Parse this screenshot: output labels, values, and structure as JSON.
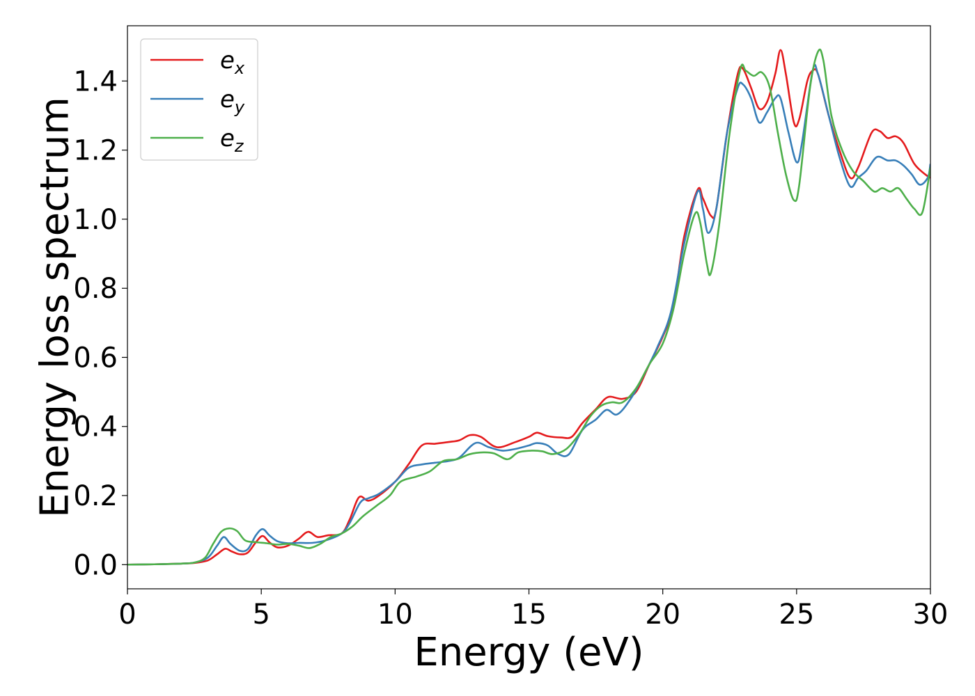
{
  "chart_data": {
    "type": "line",
    "title": "",
    "xlabel": "Energy (eV)",
    "ylabel": "Energy loss spectrum",
    "xlim": [
      0,
      30
    ],
    "ylim": [
      -0.07,
      1.56
    ],
    "xticks": [
      0,
      5,
      10,
      15,
      20,
      25,
      30
    ],
    "xtick_labels": [
      "0",
      "5",
      "10",
      "15",
      "20",
      "25",
      "30"
    ],
    "yticks": [
      0.0,
      0.2,
      0.4,
      0.6,
      0.8,
      1.0,
      1.2,
      1.4
    ],
    "ytick_labels": [
      "0.0",
      "0.2",
      "0.4",
      "0.6",
      "0.8",
      "1.0",
      "1.2",
      "1.4"
    ],
    "grid": false,
    "legend_position": "top-left",
    "series": [
      {
        "name": "e",
        "subscript": "x",
        "color": "#e41a1c",
        "points": [
          [
            0,
            0
          ],
          [
            1,
            0.001
          ],
          [
            2,
            0.003
          ],
          [
            2.5,
            0.005
          ],
          [
            3,
            0.012
          ],
          [
            3.35,
            0.03
          ],
          [
            3.65,
            0.046
          ],
          [
            3.9,
            0.038
          ],
          [
            4.2,
            0.03
          ],
          [
            4.5,
            0.035
          ],
          [
            4.8,
            0.065
          ],
          [
            5.05,
            0.083
          ],
          [
            5.3,
            0.065
          ],
          [
            5.6,
            0.05
          ],
          [
            6,
            0.055
          ],
          [
            6.4,
            0.075
          ],
          [
            6.75,
            0.095
          ],
          [
            7.1,
            0.08
          ],
          [
            7.5,
            0.085
          ],
          [
            8,
            0.09
          ],
          [
            8.3,
            0.13
          ],
          [
            8.65,
            0.195
          ],
          [
            9,
            0.185
          ],
          [
            9.4,
            0.2
          ],
          [
            10,
            0.24
          ],
          [
            10.5,
            0.29
          ],
          [
            11,
            0.345
          ],
          [
            11.5,
            0.35
          ],
          [
            12,
            0.355
          ],
          [
            12.4,
            0.36
          ],
          [
            12.8,
            0.375
          ],
          [
            13.2,
            0.37
          ],
          [
            13.8,
            0.34
          ],
          [
            14.5,
            0.355
          ],
          [
            15,
            0.37
          ],
          [
            15.3,
            0.382
          ],
          [
            15.7,
            0.372
          ],
          [
            16.2,
            0.368
          ],
          [
            16.6,
            0.37
          ],
          [
            17,
            0.41
          ],
          [
            17.5,
            0.45
          ],
          [
            17.95,
            0.485
          ],
          [
            18.5,
            0.48
          ],
          [
            19,
            0.5
          ],
          [
            19.5,
            0.58
          ],
          [
            20,
            0.66
          ],
          [
            20.4,
            0.75
          ],
          [
            20.8,
            0.95
          ],
          [
            21.3,
            1.085
          ],
          [
            21.5,
            1.06
          ],
          [
            21.8,
            1.01
          ],
          [
            22,
            1.03
          ],
          [
            22.4,
            1.25
          ],
          [
            22.8,
            1.42
          ],
          [
            23,
            1.435
          ],
          [
            23.3,
            1.38
          ],
          [
            23.6,
            1.32
          ],
          [
            23.9,
            1.34
          ],
          [
            24.2,
            1.42
          ],
          [
            24.4,
            1.49
          ],
          [
            24.6,
            1.42
          ],
          [
            24.9,
            1.28
          ],
          [
            25.1,
            1.29
          ],
          [
            25.4,
            1.4
          ],
          [
            25.6,
            1.43
          ],
          [
            25.8,
            1.42
          ],
          [
            26.2,
            1.3
          ],
          [
            26.6,
            1.2
          ],
          [
            27,
            1.12
          ],
          [
            27.3,
            1.15
          ],
          [
            27.8,
            1.25
          ],
          [
            28.1,
            1.255
          ],
          [
            28.4,
            1.235
          ],
          [
            28.7,
            1.24
          ],
          [
            29,
            1.22
          ],
          [
            29.4,
            1.16
          ],
          [
            29.8,
            1.13
          ],
          [
            30,
            1.12
          ]
        ]
      },
      {
        "name": "e",
        "subscript": "y",
        "color": "#377eb8",
        "points": [
          [
            0,
            0
          ],
          [
            1,
            0.001
          ],
          [
            2,
            0.003
          ],
          [
            2.5,
            0.006
          ],
          [
            3,
            0.02
          ],
          [
            3.35,
            0.055
          ],
          [
            3.6,
            0.08
          ],
          [
            3.85,
            0.06
          ],
          [
            4.2,
            0.04
          ],
          [
            4.5,
            0.045
          ],
          [
            4.8,
            0.085
          ],
          [
            5.05,
            0.103
          ],
          [
            5.3,
            0.085
          ],
          [
            5.6,
            0.068
          ],
          [
            6,
            0.062
          ],
          [
            6.4,
            0.063
          ],
          [
            6.9,
            0.063
          ],
          [
            7.4,
            0.07
          ],
          [
            8,
            0.09
          ],
          [
            8.3,
            0.12
          ],
          [
            8.7,
            0.18
          ],
          [
            9,
            0.192
          ],
          [
            9.4,
            0.205
          ],
          [
            10,
            0.24
          ],
          [
            10.5,
            0.28
          ],
          [
            11,
            0.29
          ],
          [
            11.5,
            0.295
          ],
          [
            12,
            0.3
          ],
          [
            12.4,
            0.31
          ],
          [
            13,
            0.352
          ],
          [
            13.5,
            0.34
          ],
          [
            14,
            0.33
          ],
          [
            14.5,
            0.335
          ],
          [
            15,
            0.345
          ],
          [
            15.3,
            0.352
          ],
          [
            15.7,
            0.345
          ],
          [
            16.1,
            0.32
          ],
          [
            16.5,
            0.32
          ],
          [
            17,
            0.39
          ],
          [
            17.5,
            0.42
          ],
          [
            17.9,
            0.448
          ],
          [
            18.3,
            0.435
          ],
          [
            18.8,
            0.48
          ],
          [
            19.3,
            0.55
          ],
          [
            19.8,
            0.63
          ],
          [
            20.3,
            0.73
          ],
          [
            20.8,
            0.93
          ],
          [
            21.3,
            1.08
          ],
          [
            21.5,
            1.03
          ],
          [
            21.7,
            0.96
          ],
          [
            22,
            1.03
          ],
          [
            22.4,
            1.25
          ],
          [
            22.8,
            1.38
          ],
          [
            23,
            1.39
          ],
          [
            23.3,
            1.35
          ],
          [
            23.6,
            1.28
          ],
          [
            23.9,
            1.31
          ],
          [
            24.2,
            1.35
          ],
          [
            24.4,
            1.35
          ],
          [
            24.7,
            1.25
          ],
          [
            25,
            1.165
          ],
          [
            25.2,
            1.22
          ],
          [
            25.6,
            1.43
          ],
          [
            25.8,
            1.42
          ],
          [
            26.2,
            1.3
          ],
          [
            26.6,
            1.18
          ],
          [
            27,
            1.095
          ],
          [
            27.3,
            1.12
          ],
          [
            27.6,
            1.14
          ],
          [
            28,
            1.18
          ],
          [
            28.4,
            1.17
          ],
          [
            28.7,
            1.17
          ],
          [
            29,
            1.155
          ],
          [
            29.3,
            1.13
          ],
          [
            29.6,
            1.1
          ],
          [
            29.9,
            1.12
          ],
          [
            30,
            1.16
          ]
        ]
      },
      {
        "name": "e",
        "subscript": "z",
        "color": "#4daf4a",
        "points": [
          [
            0,
            0
          ],
          [
            1,
            0.001
          ],
          [
            2,
            0.003
          ],
          [
            2.5,
            0.006
          ],
          [
            2.9,
            0.02
          ],
          [
            3.2,
            0.06
          ],
          [
            3.5,
            0.095
          ],
          [
            3.8,
            0.105
          ],
          [
            4.1,
            0.097
          ],
          [
            4.4,
            0.07
          ],
          [
            4.8,
            0.065
          ],
          [
            5.2,
            0.062
          ],
          [
            5.6,
            0.058
          ],
          [
            6,
            0.06
          ],
          [
            6.4,
            0.055
          ],
          [
            6.8,
            0.048
          ],
          [
            7.2,
            0.06
          ],
          [
            7.6,
            0.08
          ],
          [
            8,
            0.09
          ],
          [
            8.4,
            0.11
          ],
          [
            8.8,
            0.14
          ],
          [
            9.3,
            0.17
          ],
          [
            9.8,
            0.2
          ],
          [
            10.2,
            0.24
          ],
          [
            10.8,
            0.255
          ],
          [
            11.3,
            0.27
          ],
          [
            11.8,
            0.3
          ],
          [
            12.3,
            0.305
          ],
          [
            12.8,
            0.32
          ],
          [
            13.3,
            0.325
          ],
          [
            13.7,
            0.322
          ],
          [
            14.2,
            0.305
          ],
          [
            14.6,
            0.325
          ],
          [
            15.1,
            0.33
          ],
          [
            15.5,
            0.328
          ],
          [
            15.9,
            0.32
          ],
          [
            16.4,
            0.335
          ],
          [
            16.9,
            0.38
          ],
          [
            17.3,
            0.43
          ],
          [
            17.7,
            0.46
          ],
          [
            18.1,
            0.47
          ],
          [
            18.5,
            0.47
          ],
          [
            19,
            0.51
          ],
          [
            19.5,
            0.58
          ],
          [
            20,
            0.64
          ],
          [
            20.4,
            0.74
          ],
          [
            20.8,
            0.9
          ],
          [
            21.2,
            1.015
          ],
          [
            21.4,
            0.99
          ],
          [
            21.65,
            0.87
          ],
          [
            21.8,
            0.845
          ],
          [
            22.1,
            0.98
          ],
          [
            22.5,
            1.25
          ],
          [
            22.9,
            1.435
          ],
          [
            23.1,
            1.43
          ],
          [
            23.4,
            1.415
          ],
          [
            23.7,
            1.425
          ],
          [
            24,
            1.38
          ],
          [
            24.3,
            1.25
          ],
          [
            24.6,
            1.13
          ],
          [
            24.9,
            1.055
          ],
          [
            25.1,
            1.1
          ],
          [
            25.5,
            1.38
          ],
          [
            25.8,
            1.485
          ],
          [
            26,
            1.46
          ],
          [
            26.3,
            1.3
          ],
          [
            26.7,
            1.2
          ],
          [
            27.1,
            1.14
          ],
          [
            27.5,
            1.11
          ],
          [
            27.9,
            1.08
          ],
          [
            28.2,
            1.09
          ],
          [
            28.5,
            1.08
          ],
          [
            28.8,
            1.09
          ],
          [
            29.1,
            1.06
          ],
          [
            29.4,
            1.03
          ],
          [
            29.7,
            1.02
          ],
          [
            30,
            1.15
          ]
        ]
      }
    ]
  }
}
